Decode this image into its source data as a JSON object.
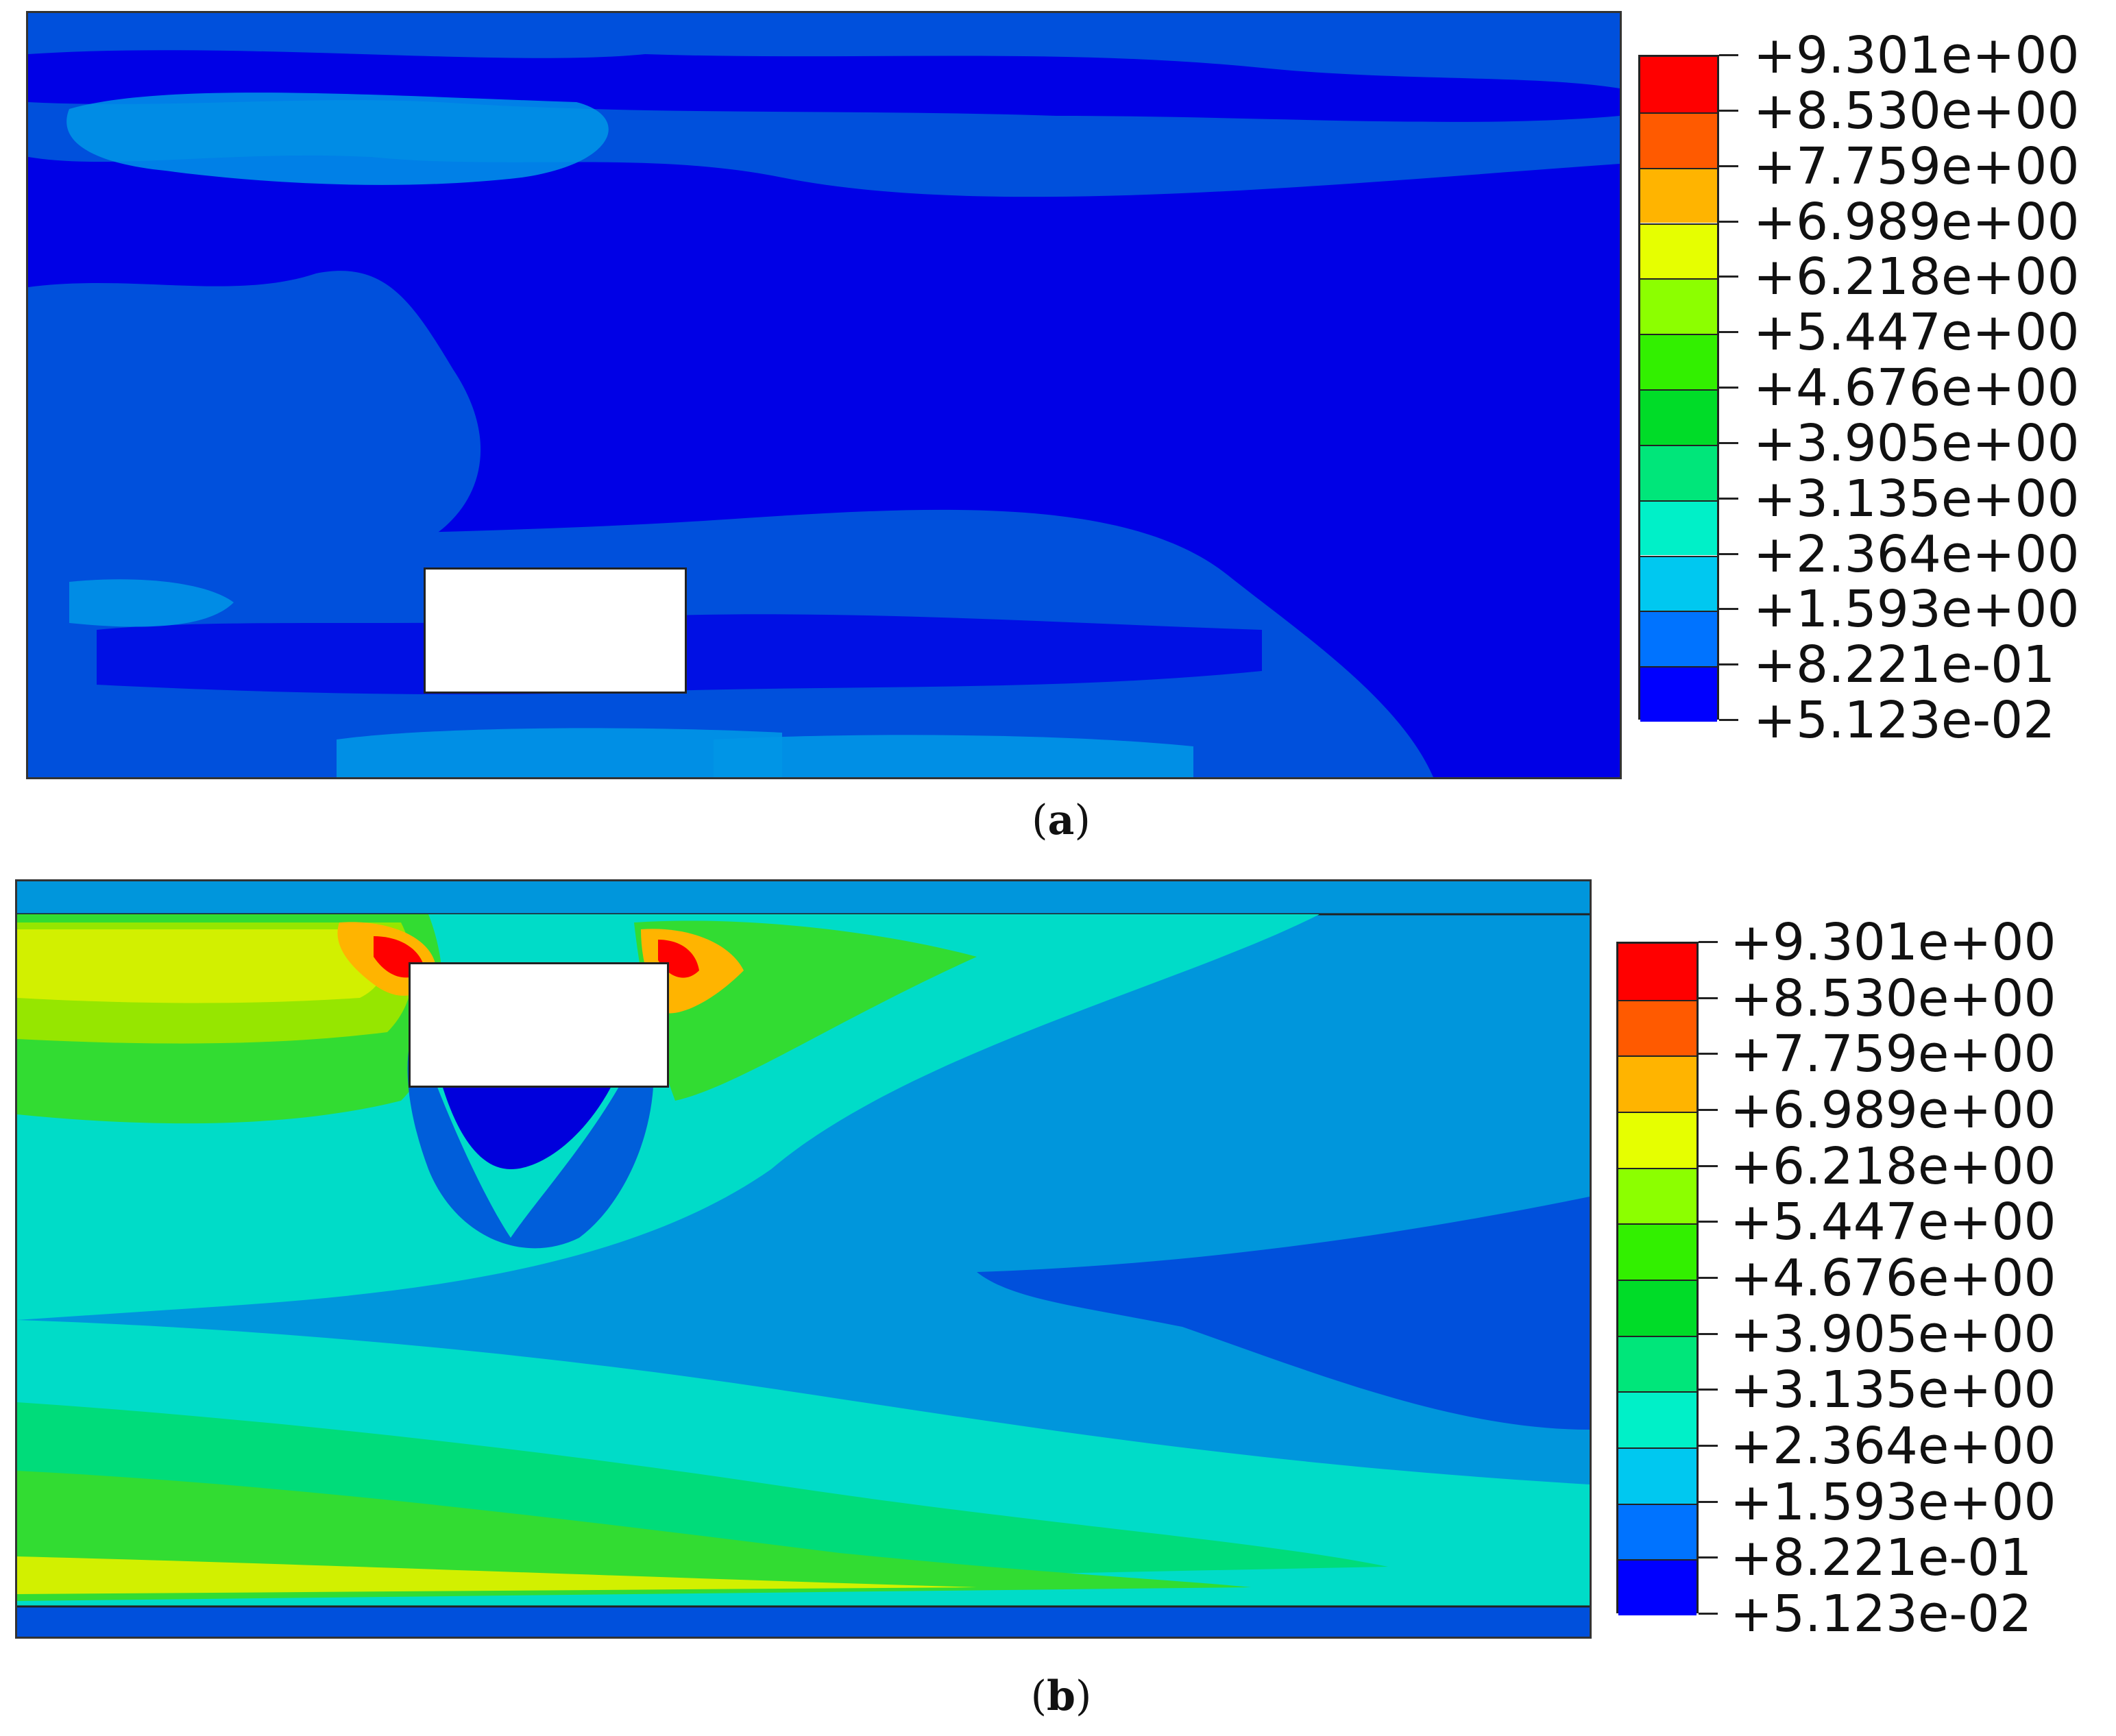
{
  "legend_levels": [
    "+9.301e+00",
    "+8.530e+00",
    "+7.759e+00",
    "+6.989e+00",
    "+6.218e+00",
    "+5.447e+00",
    "+4.676e+00",
    "+3.905e+00",
    "+3.135e+00",
    "+2.364e+00",
    "+1.593e+00",
    "+8.221e-01",
    "+5.123e-02"
  ],
  "legend_colors": [
    "#ff0000",
    "#ff5a00",
    "#ffb400",
    "#e6ff00",
    "#8cff00",
    "#32f000",
    "#00dc28",
    "#00e67a",
    "#00f0c8",
    "#00c8f0",
    "#0073ff",
    "#0000ff"
  ],
  "panels": [
    {
      "caption_open": "(",
      "caption_letter": "a",
      "caption_close": ")"
    },
    {
      "caption_open": "(",
      "caption_letter": "b",
      "caption_close": ")"
    }
  ]
}
